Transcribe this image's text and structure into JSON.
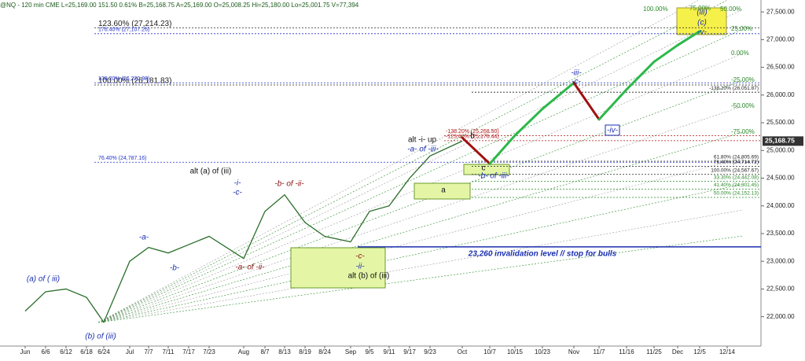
{
  "chart_data": {
    "type": "line",
    "header": "@NQ - 120 min  CME  L=25,169.00  151.50  0.61%  B=25,168.75  A=25,169.00  O=25,008.25  Hi=25,180.00  Lo=25,001.75  V=77,394",
    "last_price_label": "25,168.75",
    "categories": [
      "Jun",
      "6/6",
      "6/12",
      "6/18",
      "6/24",
      "Jul",
      "7/7",
      "7/11",
      "7/17",
      "7/23",
      "Aug",
      "8/7",
      "8/13",
      "8/19",
      "8/24",
      "Sep",
      "9/5",
      "9/11",
      "9/17",
      "9/23",
      "Oct",
      "10/7",
      "10/15",
      "10/23",
      "Nov",
      "11/7",
      "11/16",
      "11/25",
      "Dec",
      "12/5",
      "12/14"
    ],
    "series": [
      {
        "name": "price",
        "color": "#2a6e2a",
        "values": [
          22100,
          22450,
          22500,
          22350,
          21900,
          23000,
          23250,
          23150,
          23300,
          23450,
          23050,
          23900,
          24200,
          23700,
          23450,
          23350,
          23900,
          24000,
          24500,
          24900,
          25169,
          null,
          null,
          null,
          null,
          null,
          null,
          null,
          null,
          null,
          null
        ]
      },
      {
        "name": "projection",
        "color": "#2db84a",
        "down_color": "#a01010",
        "values": [
          null,
          null,
          null,
          null,
          null,
          null,
          null,
          null,
          null,
          null,
          null,
          null,
          null,
          null,
          null,
          null,
          null,
          null,
          null,
          null,
          25230,
          24760,
          25270,
          25750,
          26220,
          25560,
          26100,
          26600,
          26900,
          27150,
          null
        ]
      }
    ],
    "ylim": [
      21470,
      27715
    ],
    "yticks": [
      {
        "value": 22000,
        "label": "22,000.00"
      },
      {
        "value": 22500,
        "label": "22,500.00"
      },
      {
        "value": 23000,
        "label": "23,000.00"
      },
      {
        "value": 23500,
        "label": "23,500.00"
      },
      {
        "value": 24000,
        "label": "24,000.00"
      },
      {
        "value": 24500,
        "label": "24,500.00"
      },
      {
        "value": 25000,
        "label": "25,000.00"
      },
      {
        "value": 25500,
        "label": "25,500.00"
      },
      {
        "value": 26000,
        "label": "26,000.00"
      },
      {
        "value": 26500,
        "label": "26,500.00"
      },
      {
        "value": 27000,
        "label": "27,000.00"
      },
      {
        "value": 27500,
        "label": "27,500.00"
      }
    ],
    "levels_left": [
      {
        "label": "123.60% (27,214.23)",
        "value": 27214.23,
        "color": "#222222"
      },
      {
        "label": "100.00% (26,181.83)",
        "value": 26181.83,
        "color": "#222222"
      },
      {
        "label": "176.40% (27,107.26)",
        "value": 27107.26,
        "color": "#2233cc"
      },
      {
        "label": "138.20% (26,220.98)",
        "value": 26220.98,
        "color": "#2233cc"
      },
      {
        "label": "76.40% (24,787.16)",
        "value": 24787.16,
        "color": "#2233cc"
      }
    ],
    "levels_mid": [
      {
        "label": "-138.20% (25,268.50)",
        "value": 25268.5,
        "color": "#b01515"
      },
      {
        "label": "-123.60% (25,176.44)",
        "value": 25176.44,
        "color": "#b01515"
      }
    ],
    "levels_right": [
      {
        "label": "-138.20% (26,051.87)",
        "value": 26051.87,
        "color": "#222222"
      },
      {
        "label": "61.80% (24,805.69)",
        "value": 24805.69,
        "color": "#222222"
      },
      {
        "label": "76.40% (24,714.72)",
        "value": 24714.72,
        "color": "#222222"
      },
      {
        "label": "100.00% (24,567.67)",
        "value": 24567.67,
        "color": "#222222"
      },
      {
        "label": "33.30% (24,442.08)",
        "value": 24442.08,
        "color": "#2a8a2a"
      },
      {
        "label": "41.40% (24,301.45)",
        "value": 24301.45,
        "color": "#2a8a2a"
      },
      {
        "label": "50.00% (24,152.13)",
        "value": 24152.13,
        "color": "#2a8a2a"
      }
    ],
    "invalidation": {
      "label": "23,260 invalidation level // stop for bulls",
      "value": 23260,
      "color": "#1a2fb0"
    },
    "fan_labels": [
      "100.00%",
      "75.00%",
      "50.00%",
      "25.00%",
      "0.00%",
      "-25.00%",
      "-50.00%",
      "-75.00%"
    ],
    "wave_labels": [
      "(a) of ( iii)",
      "(b) of (iii)",
      "-a-",
      "-b-",
      "alt (a) of (iii)",
      "-i-",
      "-c-",
      "-a- of -ii-",
      "-b- of -ii-",
      "-c-",
      "-ii-",
      "alt (b) of (iii)",
      "alt -i- up",
      "-a- of -iii-",
      "a",
      "b",
      "c",
      "-b- of -iii-",
      "-iii-",
      "-c-",
      "-iv-",
      "(iii)",
      "(c)",
      "-v-"
    ]
  }
}
